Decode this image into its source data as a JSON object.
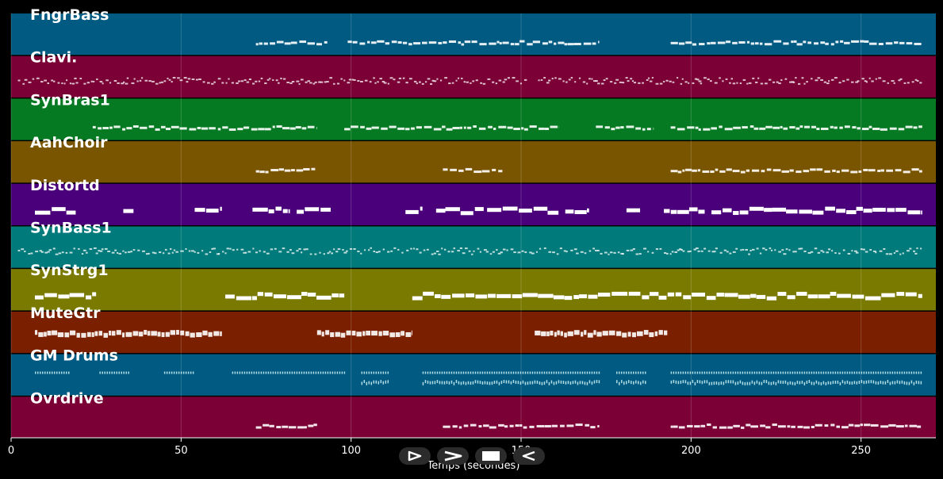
{
  "chart_data": {
    "type": "piano-roll",
    "xlabel": "Temps (secondes)",
    "xlim": [
      0,
      272
    ],
    "xticks": [
      0,
      50,
      100,
      150,
      200,
      250
    ],
    "tracks": [
      {
        "name": "FngrBass",
        "color": "#005a82",
        "style": "line",
        "segments": [
          [
            72,
            93
          ],
          [
            99,
            173
          ],
          [
            194,
            268
          ]
        ]
      },
      {
        "name": "Clavi.",
        "color": "#7a0035",
        "style": "dots",
        "segments": [
          [
            2,
            151
          ],
          [
            155,
            268
          ]
        ]
      },
      {
        "name": "SynBras1",
        "color": "#057a22",
        "style": "line",
        "segments": [
          [
            24,
            90
          ],
          [
            98,
            161
          ],
          [
            172,
            189
          ],
          [
            194,
            268
          ]
        ]
      },
      {
        "name": "AahChoir",
        "color": "#7a5500",
        "style": "line",
        "segments": [
          [
            72,
            90
          ],
          [
            127,
            145
          ],
          [
            194,
            268
          ]
        ]
      },
      {
        "name": "Distortd",
        "color": "#4a007a",
        "style": "bars",
        "segments": [
          [
            7,
            19
          ],
          [
            33,
            36
          ],
          [
            54,
            62
          ],
          [
            71,
            82
          ],
          [
            84,
            94
          ],
          [
            116,
            121
          ],
          [
            125,
            139
          ],
          [
            140,
            161
          ],
          [
            163,
            170
          ],
          [
            181,
            185
          ],
          [
            192,
            204
          ],
          [
            206,
            268
          ]
        ]
      },
      {
        "name": "SynBass1",
        "color": "#007a7a",
        "style": "dots",
        "segments": [
          [
            2,
            268
          ]
        ]
      },
      {
        "name": "SynStrg1",
        "color": "#7a7a00",
        "style": "bars",
        "segments": [
          [
            7,
            25
          ],
          [
            63,
            98
          ],
          [
            118,
            268
          ]
        ]
      },
      {
        "name": "MuteGtr",
        "color": "#7a2000",
        "style": "dense",
        "segments": [
          [
            7,
            62
          ],
          [
            90,
            118
          ],
          [
            154,
            193
          ]
        ]
      },
      {
        "name": "GM Drums",
        "color": "#005a82",
        "style": "drums",
        "segments": [
          [
            7,
            17
          ],
          [
            26,
            35
          ],
          [
            45,
            54
          ],
          [
            65,
            98
          ],
          [
            103,
            111
          ],
          [
            121,
            173
          ],
          [
            178,
            187
          ],
          [
            194,
            268
          ]
        ]
      },
      {
        "name": "Ovrdrive",
        "color": "#7a0035",
        "style": "line",
        "segments": [
          [
            72,
            90
          ],
          [
            127,
            173
          ],
          [
            194,
            268
          ]
        ]
      }
    ]
  },
  "transport": {
    "buttons": [
      {
        "name": "play-icon"
      },
      {
        "name": "fast-forward-icon"
      },
      {
        "name": "stop-icon"
      },
      {
        "name": "rewind-icon"
      }
    ]
  }
}
